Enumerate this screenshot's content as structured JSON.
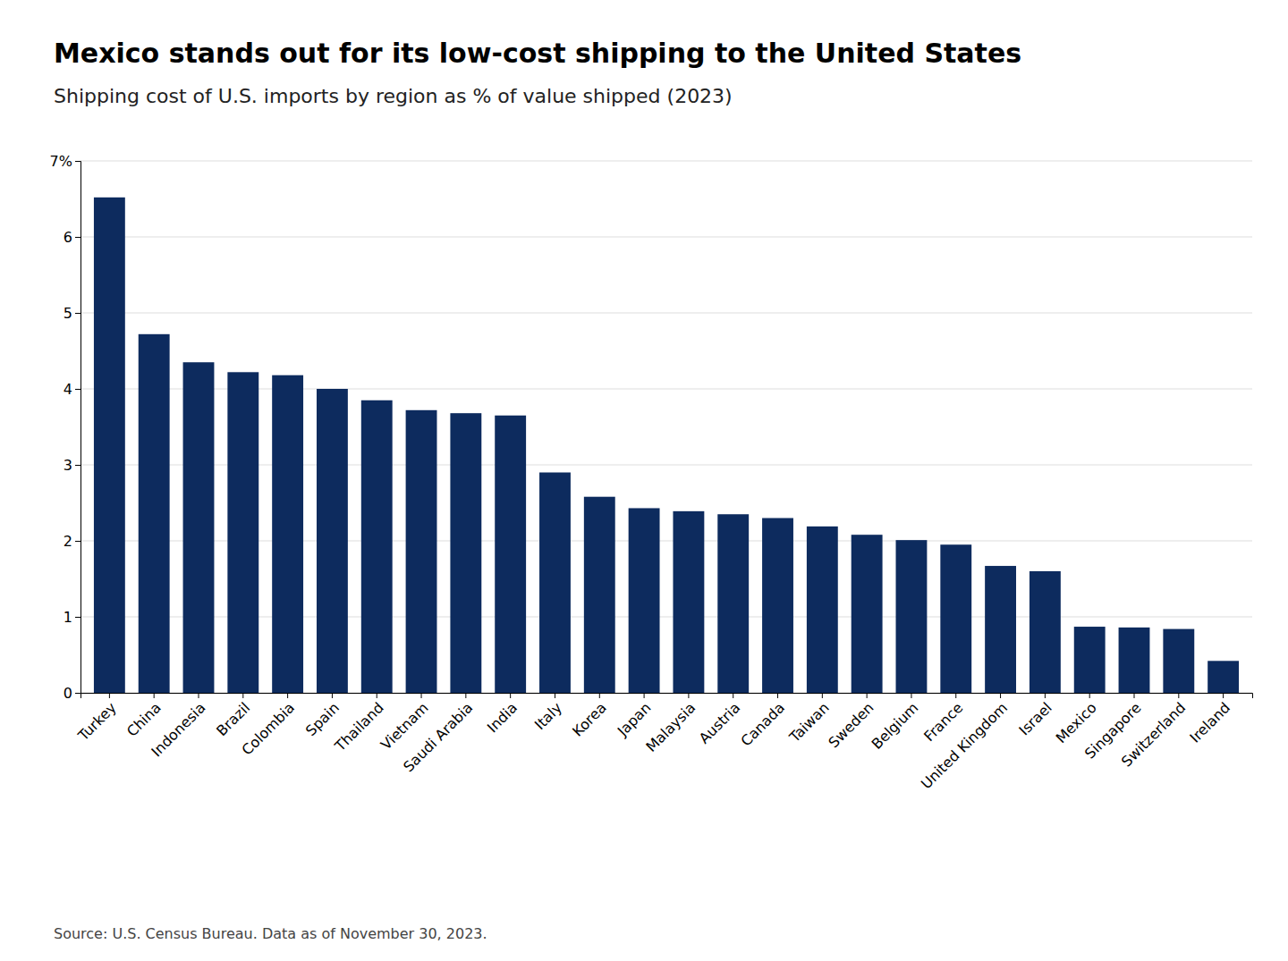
{
  "chart_data": {
    "type": "bar",
    "title": "Mexico stands out for its low-cost shipping to the United States",
    "subtitle": "Shipping cost of U.S. imports by region as % of value shipped (2023)",
    "source": "Source: U.S. Census Bureau. Data as of November 30, 2023.",
    "categories": [
      "Turkey",
      "China",
      "Indonesia",
      "Brazil",
      "Colombia",
      "Spain",
      "Thailand",
      "Vietnam",
      "Saudi Arabia",
      "India",
      "Italy",
      "Korea",
      "Japan",
      "Malaysia",
      "Austria",
      "Canada",
      "Taiwan",
      "Sweden",
      "Belgium",
      "France",
      "United Kingdom",
      "Israel",
      "Mexico",
      "Singapore",
      "Switzerland",
      "Ireland"
    ],
    "values": [
      6.52,
      4.72,
      4.35,
      4.22,
      4.18,
      4.0,
      3.85,
      3.72,
      3.68,
      3.65,
      2.9,
      2.58,
      2.43,
      2.39,
      2.35,
      2.3,
      2.19,
      2.08,
      2.01,
      1.95,
      1.67,
      1.6,
      0.87,
      0.86,
      0.84,
      0.42
    ],
    "color": "#0d2b5e",
    "ylim": [
      0,
      7
    ],
    "yticks": [
      0,
      1,
      2,
      3,
      4,
      5,
      6,
      {
        "value": 7,
        "label": "7%"
      }
    ],
    "grid": true
  }
}
